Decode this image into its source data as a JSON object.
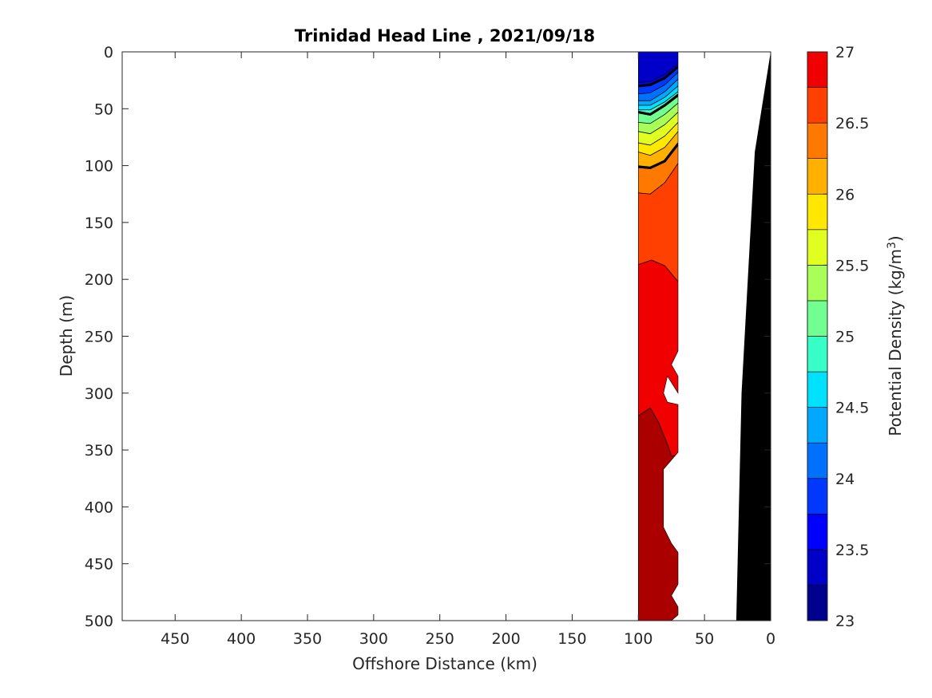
{
  "chart_data": {
    "type": "contour",
    "title": "Trinidad Head Line , 2021/09/18",
    "xlabel": "Offshore Distance (km)",
    "ylabel": "Depth (m)",
    "xlim": [
      490,
      0
    ],
    "ylim": [
      500,
      0
    ],
    "x_direction": "reversed",
    "y_direction": "reversed",
    "x_ticks": [
      450,
      400,
      350,
      300,
      250,
      200,
      150,
      100,
      50,
      0
    ],
    "y_ticks": [
      0,
      50,
      100,
      150,
      200,
      250,
      300,
      350,
      400,
      450,
      500
    ],
    "grid": false,
    "colorbar": {
      "label": "Potential Density (kg/m",
      "label_superscript": "3",
      "label_close": ")",
      "min": 23,
      "max": 27,
      "levels": [
        23,
        23.25,
        23.5,
        23.75,
        24,
        24.25,
        24.5,
        24.75,
        25,
        25.25,
        25.5,
        25.75,
        26,
        26.25,
        26.5,
        26.75,
        27
      ],
      "tick_values": [
        23,
        23.5,
        24,
        24.5,
        25,
        25.5,
        26,
        26.5,
        27
      ],
      "tick_labels": [
        "23",
        "23.5",
        "24",
        "24.5",
        "25",
        "25.5",
        "26",
        "26.5",
        "27"
      ],
      "colors": [
        "#00008f",
        "#0000c8",
        "#0000ff",
        "#0038ff",
        "#0070ff",
        "#00a8ff",
        "#00e0ff",
        "#38ffc8",
        "#70ff90",
        "#a8ff58",
        "#e0ff20",
        "#ffe800",
        "#ffb000",
        "#ff7800",
        "#ff4000",
        "#f00000",
        "#aa0000"
      ]
    },
    "density_contours": [
      {
        "value": 23.5,
        "bold": false,
        "points": [
          [
            100,
            27
          ],
          [
            91,
            26
          ],
          [
            80,
            20
          ],
          [
            70,
            10
          ]
        ]
      },
      {
        "value": 23.75,
        "bold": true,
        "points": [
          [
            100,
            30
          ],
          [
            91,
            29
          ],
          [
            80,
            23
          ],
          [
            70,
            13
          ]
        ]
      },
      {
        "value": 24,
        "bold": false,
        "points": [
          [
            100,
            37
          ],
          [
            91,
            36
          ],
          [
            80,
            29
          ],
          [
            70,
            18
          ]
        ]
      },
      {
        "value": 24.25,
        "bold": false,
        "points": [
          [
            100,
            43
          ],
          [
            91,
            43
          ],
          [
            80,
            35
          ],
          [
            70,
            24
          ]
        ]
      },
      {
        "value": 24.5,
        "bold": false,
        "points": [
          [
            100,
            47
          ],
          [
            91,
            47
          ],
          [
            80,
            40
          ],
          [
            70,
            30
          ]
        ]
      },
      {
        "value": 24.75,
        "bold": false,
        "points": [
          [
            100,
            51
          ],
          [
            91,
            51
          ],
          [
            80,
            44
          ],
          [
            70,
            35
          ]
        ]
      },
      {
        "value": 25,
        "bold": true,
        "points": [
          [
            100,
            53
          ],
          [
            91,
            55
          ],
          [
            80,
            47
          ],
          [
            70,
            38
          ]
        ]
      },
      {
        "value": 25.25,
        "bold": false,
        "points": [
          [
            100,
            62
          ],
          [
            91,
            63
          ],
          [
            80,
            55
          ],
          [
            70,
            45
          ]
        ]
      },
      {
        "value": 25.5,
        "bold": false,
        "points": [
          [
            100,
            70
          ],
          [
            91,
            72
          ],
          [
            80,
            64
          ],
          [
            70,
            53
          ]
        ]
      },
      {
        "value": 25.75,
        "bold": false,
        "points": [
          [
            100,
            80
          ],
          [
            91,
            82
          ],
          [
            80,
            74
          ],
          [
            70,
            62
          ]
        ]
      },
      {
        "value": 26,
        "bold": false,
        "points": [
          [
            100,
            88
          ],
          [
            91,
            91
          ],
          [
            80,
            84
          ],
          [
            70,
            70
          ]
        ]
      },
      {
        "value": 26.25,
        "bold": true,
        "points": [
          [
            100,
            101
          ],
          [
            91,
            102
          ],
          [
            80,
            96
          ],
          [
            70,
            81
          ]
        ]
      },
      {
        "value": 26.5,
        "bold": false,
        "points": [
          [
            100,
            124
          ],
          [
            91,
            125
          ],
          [
            80,
            115
          ],
          [
            70,
            98
          ]
        ]
      },
      {
        "value": 26.75,
        "bold": false,
        "points": [
          [
            100,
            187
          ],
          [
            90,
            183
          ],
          [
            80,
            188
          ],
          [
            70,
            202
          ]
        ]
      },
      {
        "value": 27,
        "bold": false,
        "points": [
          [
            100,
            320
          ],
          [
            91,
            313
          ],
          [
            85,
            325
          ],
          [
            78,
            345
          ],
          [
            75,
            355
          ]
        ]
      }
    ],
    "bathymetry": {
      "fill": "#000000",
      "points": [
        [
          0,
          0
        ],
        [
          12,
          88
        ],
        [
          22,
          300
        ],
        [
          26,
          500
        ]
      ]
    }
  }
}
